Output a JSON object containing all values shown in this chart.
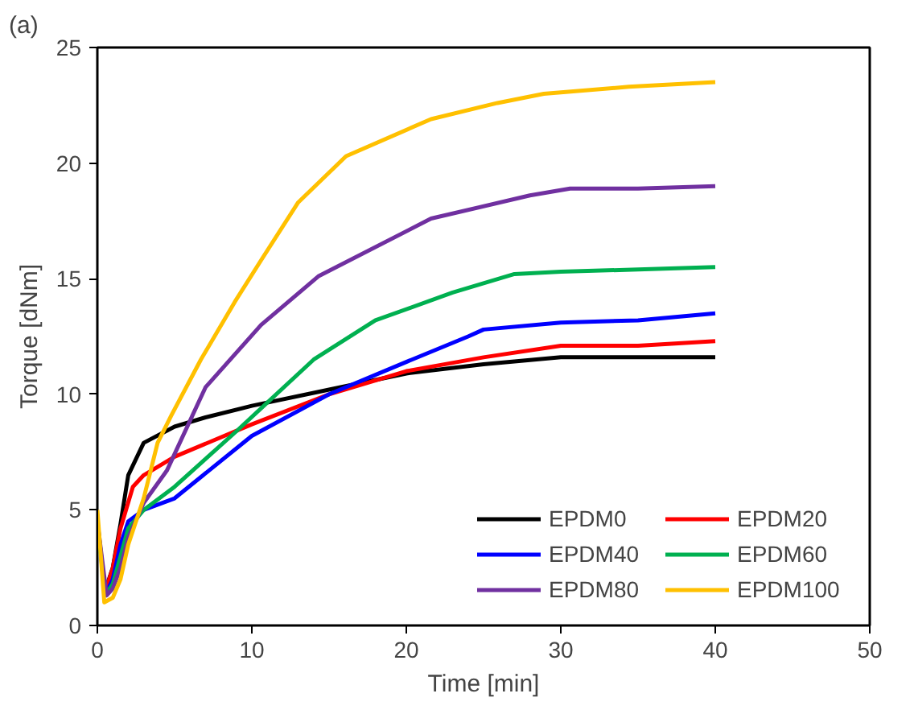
{
  "chart_data": {
    "type": "line",
    "xlabel": "Time [min]",
    "ylabel": "Torque [dNm]",
    "annotations": [
      "(a)"
    ],
    "xlim": [
      0,
      50
    ],
    "ylim": [
      0,
      25
    ],
    "xticks": [
      0,
      10,
      20,
      30,
      40,
      50
    ],
    "yticks": [
      0,
      5,
      10,
      15,
      20,
      25
    ],
    "grid": false,
    "legend": "bottom right",
    "marker": "none",
    "line_style": "solid",
    "series": [
      {
        "name": "EPDM0",
        "color": "#000000",
        "x": [
          0,
          0.5,
          1,
          1.5,
          2,
          3,
          5,
          7,
          10,
          15,
          20,
          25,
          30,
          35,
          40
        ],
        "values": [
          4.5,
          1.5,
          2.5,
          4.4,
          6.5,
          7.9,
          8.6,
          9.0,
          9.5,
          10.2,
          10.9,
          11.3,
          11.6,
          11.6,
          11.6
        ]
      },
      {
        "name": "EPDM20",
        "color": "#ff0000",
        "x": [
          0.5,
          1,
          1.5,
          2.3,
          3,
          5,
          10,
          15,
          20,
          25,
          30,
          35,
          40
        ],
        "values": [
          1.4,
          2.5,
          4.2,
          6.0,
          6.5,
          7.3,
          8.7,
          10.0,
          11.0,
          11.6,
          12.1,
          12.1,
          12.3
        ]
      },
      {
        "name": "EPDM40",
        "color": "#0000ff",
        "x": [
          0.5,
          1,
          1.5,
          2,
          3,
          5,
          10,
          15,
          20,
          24,
          25,
          30,
          35,
          40
        ],
        "values": [
          1.3,
          2.0,
          3.5,
          4.5,
          5.0,
          5.5,
          8.2,
          10.0,
          11.4,
          12.5,
          12.8,
          13.1,
          13.2,
          13.5
        ]
      },
      {
        "name": "EPDM60",
        "color": "#00b050",
        "x": [
          0,
          0.5,
          1,
          1.5,
          2,
          3,
          5,
          9,
          14,
          18,
          23,
          27,
          30,
          35,
          40
        ],
        "values": [
          4.5,
          1.3,
          1.8,
          3.0,
          4.2,
          5.0,
          6.0,
          8.4,
          11.5,
          13.2,
          14.4,
          15.2,
          15.3,
          15.4,
          15.5
        ]
      },
      {
        "name": "EPDM80",
        "color": "#7030a0",
        "x": [
          0,
          0.6,
          1,
          1.5,
          2,
          3,
          4.5,
          7,
          10.6,
          14.3,
          21.6,
          28,
          30.6,
          35,
          40
        ],
        "values": [
          4.5,
          1.3,
          1.6,
          2.5,
          3.8,
          5.3,
          6.7,
          10.3,
          13.0,
          15.1,
          17.6,
          18.6,
          18.9,
          18.9,
          19.0
        ]
      },
      {
        "name": "EPDM100",
        "color": "#ffc000",
        "x": [
          0,
          0.45,
          1,
          1.5,
          2,
          3,
          3.9,
          4.8,
          6.7,
          8.9,
          10.6,
          13,
          16.1,
          21.6,
          25.9,
          28.9,
          34.4,
          40
        ],
        "values": [
          5.0,
          1.0,
          1.2,
          2.0,
          3.5,
          5.5,
          7.9,
          9.1,
          11.5,
          14.0,
          15.8,
          18.3,
          20.3,
          21.9,
          22.6,
          23.0,
          23.3,
          23.5
        ]
      }
    ]
  }
}
